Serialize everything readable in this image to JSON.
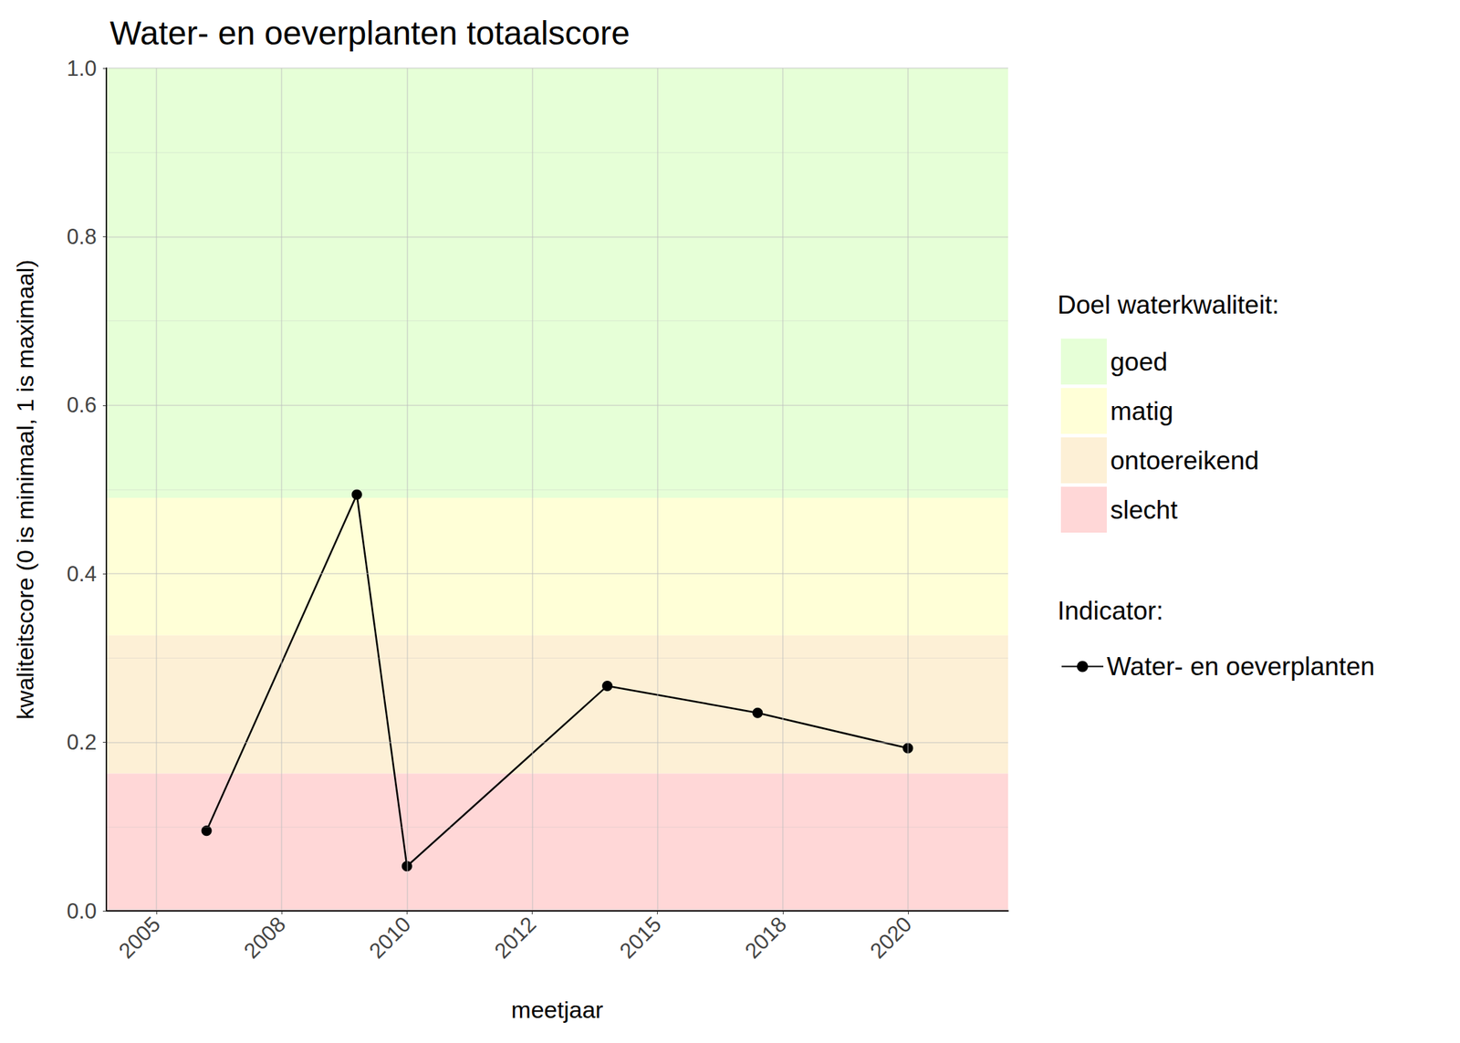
{
  "chart_data": {
    "type": "line",
    "title": "Water- en oeverplanten totaalscore",
    "x_label": "meetjaar",
    "y_label": "kwaliteitscore (0 is minimaal, 1 is maximaal)",
    "x": [
      2006,
      2009,
      2010,
      2014,
      2017,
      2020
    ],
    "series": [
      {
        "name": "Water- en oeverplanten",
        "color": "#000000",
        "marker": "circle",
        "line_style": "solid",
        "values": [
          0.095,
          0.494,
          0.053,
          0.267,
          0.235,
          0.193
        ]
      }
    ],
    "xlim": [
      2004,
      2022
    ],
    "xticks": [
      2005,
      {
        "value": 2007.5,
        "label": "2008"
      },
      2010,
      {
        "value": 2012.5,
        "label": "2012"
      },
      2015,
      {
        "value": 2017.5,
        "label": "2018"
      },
      2020
    ],
    "ylim": [
      0,
      1
    ],
    "yticks": [
      {
        "value": 0,
        "label": "0.0"
      },
      0.2,
      0.4,
      0.6,
      0.8,
      {
        "value": 1,
        "label": "1.0"
      }
    ],
    "grid": true,
    "legend": "right",
    "band_legend_title": "Doel waterkwaliteit:",
    "series_legend_title": "Indicator:",
    "bands": [
      {
        "name": "goed",
        "from": 0.49,
        "to": 1,
        "color": "#e6ffd7"
      },
      {
        "name": "matig",
        "from": 0.327,
        "to": 0.49,
        "color": "#ffffd7"
      },
      {
        "name": "ontoereikend",
        "from": 0.163,
        "to": 0.327,
        "color": "#fdf0d6"
      },
      {
        "name": "slecht",
        "from": 0,
        "to": 0.163,
        "color": "#ffd7d7"
      }
    ]
  }
}
